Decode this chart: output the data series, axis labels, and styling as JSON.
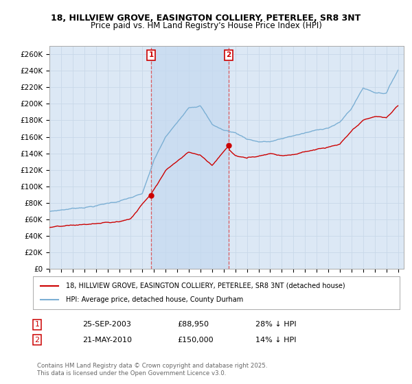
{
  "title": "18, HILLVIEW GROVE, EASINGTON COLLIERY, PETERLEE, SR8 3NT",
  "subtitle": "Price paid vs. HM Land Registry's House Price Index (HPI)",
  "ylabel_ticks": [
    "£0",
    "£20K",
    "£40K",
    "£60K",
    "£80K",
    "£100K",
    "£120K",
    "£140K",
    "£160K",
    "£180K",
    "£200K",
    "£220K",
    "£240K",
    "£260K"
  ],
  "ytick_vals": [
    0,
    20000,
    40000,
    60000,
    80000,
    100000,
    120000,
    140000,
    160000,
    180000,
    200000,
    220000,
    240000,
    260000
  ],
  "ylim": [
    0,
    270000
  ],
  "legend_line1": "18, HILLVIEW GROVE, EASINGTON COLLIERY, PETERLEE, SR8 3NT (detached house)",
  "legend_line2": "HPI: Average price, detached house, County Durham",
  "annotation1_date": "25-SEP-2003",
  "annotation1_price": "£88,950",
  "annotation1_hpi": "28% ↓ HPI",
  "annotation2_date": "21-MAY-2010",
  "annotation2_price": "£150,000",
  "annotation2_hpi": "14% ↓ HPI",
  "copyright": "Contains HM Land Registry data © Crown copyright and database right 2025.\nThis data is licensed under the Open Government Licence v3.0.",
  "hpi_color": "#7bafd4",
  "price_color": "#cc0000",
  "background_color": "#dce8f5",
  "fig_background": "#ffffff",
  "grid_color": "#c8d8e8",
  "highlight_color": "#c5d9f0",
  "purchase1_year": 2003.75,
  "purchase1_price": 88950,
  "purchase2_year": 2010.416,
  "purchase2_price": 150000,
  "year_start": 1995,
  "year_end": 2025,
  "hpi_control_years": [
    1995,
    1997,
    1999,
    2001,
    2003,
    2004,
    2005,
    2006,
    2007,
    2008,
    2009,
    2010,
    2011,
    2012,
    2013,
    2014,
    2015,
    2016,
    2017,
    2018,
    2019,
    2020,
    2021,
    2022,
    2023,
    2024,
    2025
  ],
  "hpi_control_vals": [
    68000,
    72000,
    76000,
    82000,
    90000,
    130000,
    158000,
    175000,
    195000,
    198000,
    175000,
    168000,
    165000,
    158000,
    155000,
    155000,
    158000,
    162000,
    165000,
    168000,
    172000,
    178000,
    195000,
    220000,
    215000,
    215000,
    243000
  ],
  "price_control_years": [
    1995,
    1997,
    1999,
    2001,
    2002,
    2003.75,
    2004,
    2005,
    2006,
    2007,
    2008,
    2009,
    2010.416,
    2010.5,
    2011,
    2012,
    2013,
    2014,
    2015,
    2016,
    2017,
    2018,
    2019,
    2020,
    2021,
    2022,
    2023,
    2024,
    2025
  ],
  "price_control_vals": [
    49000,
    50000,
    52000,
    54000,
    58000,
    88950,
    95000,
    118000,
    130000,
    142000,
    138000,
    126000,
    150000,
    145000,
    138000,
    135000,
    138000,
    142000,
    140000,
    142000,
    145000,
    148000,
    150000,
    153000,
    168000,
    180000,
    185000,
    183000,
    198000
  ]
}
